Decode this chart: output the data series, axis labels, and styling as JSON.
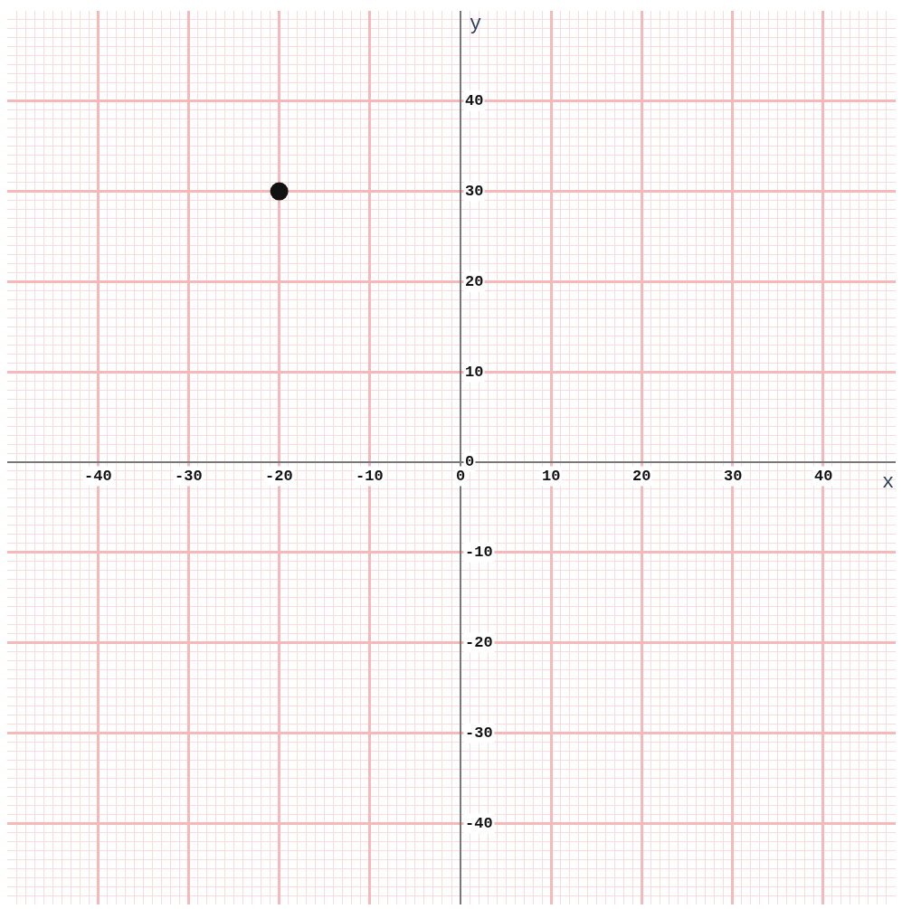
{
  "chart_data": {
    "type": "scatter",
    "xlabel": "x",
    "ylabel": "y",
    "x": [
      -20
    ],
    "values": [
      30
    ],
    "color": "#111111",
    "marker": "circle",
    "xlim": [
      -50,
      48
    ],
    "ylim": [
      -49,
      50
    ],
    "xticks": [
      -40,
      -30,
      -20,
      -10,
      0,
      10,
      20,
      30,
      40
    ],
    "yticks": [
      -40,
      -30,
      -20,
      -10,
      0,
      10,
      20,
      30,
      40
    ],
    "grid": true,
    "legend": false
  }
}
